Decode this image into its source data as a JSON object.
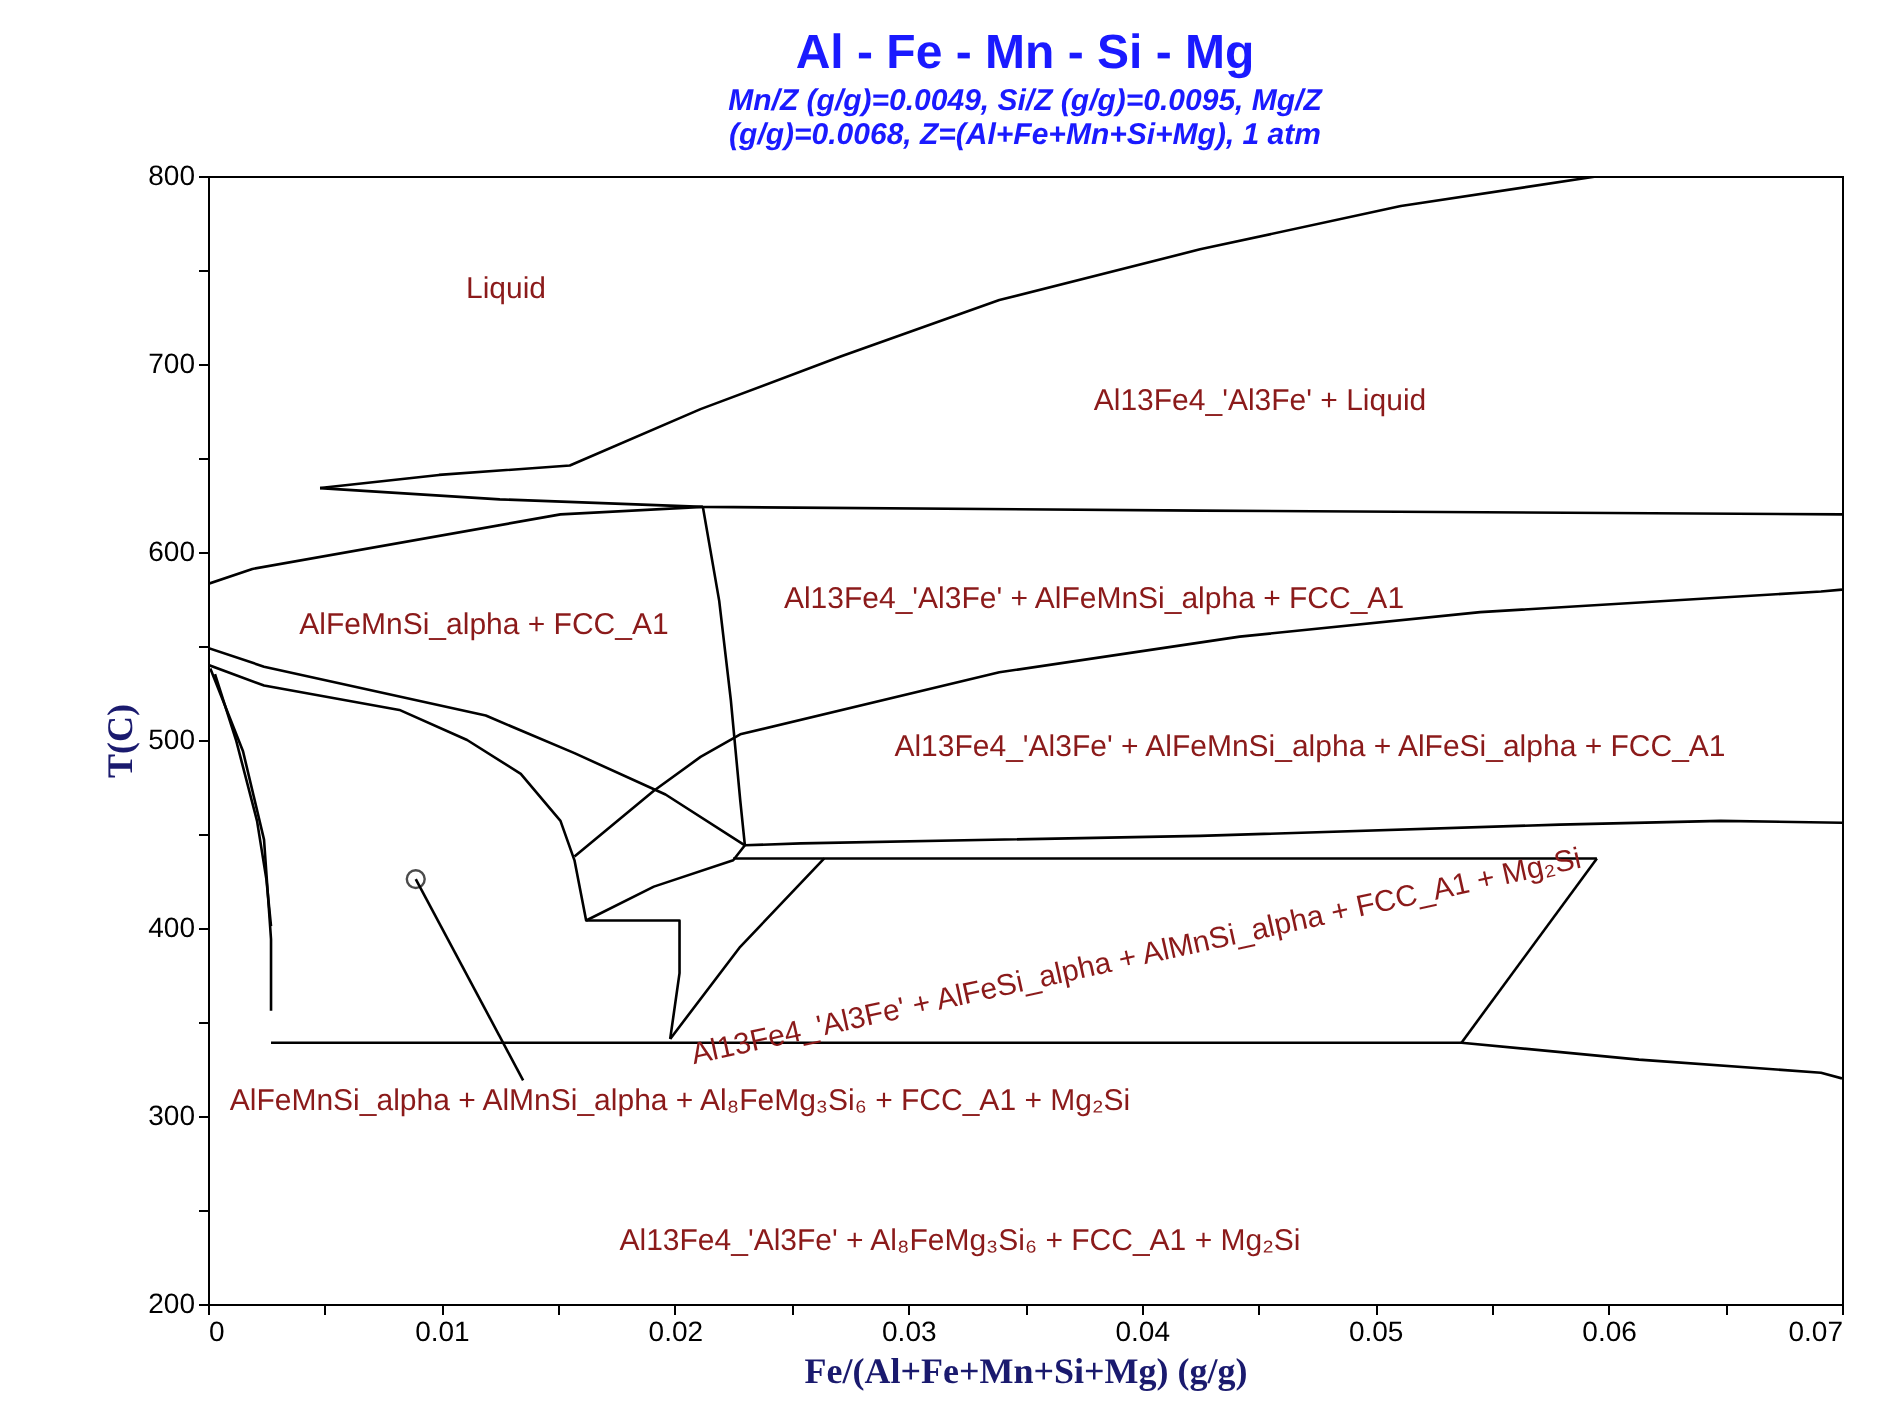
{
  "chart_data": {
    "type": "line",
    "title": "Al - Fe - Mn - Si - Mg",
    "subtitle": "Mn/Z (g/g)=0.0049, Si/Z (g/g)=0.0095, Mg/Z (g/g)=0.0068, Z=(Al+Fe+Mn+Si+Mg), 1 atm",
    "xlabel": "Fe/(Al+Fe+Mn+Si+Mg) (g/g)",
    "ylabel": "T(C)",
    "xlim": [
      0,
      0.07
    ],
    "ylim": [
      200,
      800
    ],
    "xticks": [
      0,
      {
        "value": 0.005,
        "label": null
      },
      0.01,
      {
        "value": 0.015,
        "label": null
      },
      0.02,
      {
        "value": 0.025,
        "label": null
      },
      0.03,
      {
        "value": 0.035,
        "label": null
      },
      0.04,
      {
        "value": 0.045,
        "label": null
      },
      0.05,
      {
        "value": 0.055,
        "label": null
      },
      0.06,
      {
        "value": 0.065,
        "label": null
      },
      0.07
    ],
    "yticks": [
      200,
      {
        "value": 250,
        "label": null
      },
      300,
      {
        "value": 350,
        "label": null
      },
      400,
      {
        "value": 450,
        "label": null
      },
      500,
      {
        "value": 550,
        "label": null
      },
      600,
      {
        "value": 650,
        "label": null
      },
      700,
      {
        "value": 750,
        "label": null
      },
      800
    ],
    "series": [
      {
        "type": "line",
        "color": "#000000",
        "x": [
          0.0048,
          0.0099,
          0.0155,
          0.0211,
          0.0271,
          0.0339,
          0.0425,
          0.0511,
          0.0596
        ],
        "values": [
          634,
          641,
          646,
          676,
          704,
          734,
          761,
          784,
          800
        ]
      },
      {
        "type": "line",
        "color": "#000000",
        "x": [
          0.0048,
          0.0125,
          0.0212,
          0.0425,
          0.07
        ],
        "values": [
          634,
          628,
          624,
          622,
          620
        ]
      },
      {
        "type": "line",
        "color": "#000000",
        "x": [
          0,
          0.0019,
          0.0151,
          0.0212
        ],
        "values": [
          583,
          591,
          620,
          624
        ]
      },
      {
        "type": "line",
        "color": "#000000",
        "x": [
          0.0212,
          0.0219,
          0.0224,
          0.0228,
          0.023
        ],
        "values": [
          624,
          574,
          521,
          468,
          444
        ]
      },
      {
        "type": "line",
        "color": "#000000",
        "x": [
          0.023,
          0.0254,
          0.0425,
          0.0579,
          0.0648,
          0.07
        ],
        "values": [
          444,
          445,
          449,
          455,
          457,
          456
        ]
      },
      {
        "type": "line",
        "color": "#000000",
        "x": [
          0,
          0.0024,
          0.0119,
          0.0157,
          0.0196,
          0.023
        ],
        "values": [
          549,
          539,
          513,
          493,
          471,
          444
        ]
      },
      {
        "type": "line",
        "color": "#000000",
        "x": [
          0,
          0.0024,
          0.0082,
          0.0111,
          0.0134,
          0.0151,
          0.0157,
          0.0162,
          0.0202,
          0.0202,
          0.0198
        ],
        "values": [
          540,
          529,
          516,
          500,
          482,
          457,
          436,
          404,
          404,
          376,
          341
        ]
      },
      {
        "type": "line",
        "color": "#000000",
        "x": [
          0.0157,
          0.0191,
          0.0211,
          0.0228,
          0.0339,
          0.0442,
          0.0545,
          0.0691,
          0.07
        ],
        "values": [
          438,
          473,
          491,
          503,
          536,
          555,
          568,
          579,
          580
        ]
      },
      {
        "type": "line",
        "color": "#000000",
        "x": [
          0.0162,
          0.0191,
          0.0225,
          0.023
        ],
        "values": [
          404,
          422,
          436,
          444
        ]
      },
      {
        "type": "line",
        "color": "#000000",
        "x": [
          0.0225,
          0.0264,
          0.0595
        ],
        "values": [
          437,
          437,
          437
        ]
      },
      {
        "type": "line",
        "color": "#000000",
        "x": [
          0.0264,
          0.0228,
          0.0198
        ],
        "values": [
          437,
          390,
          341
        ]
      },
      {
        "type": "line",
        "color": "#000000",
        "x": [
          0.0027,
          0.0537,
          0.0613,
          0.0691,
          0.07
        ],
        "values": [
          339,
          339,
          330,
          323,
          320
        ]
      },
      {
        "type": "line",
        "color": "#000000",
        "x": [
          0.0595,
          0.0537
        ],
        "values": [
          437,
          339
        ]
      },
      {
        "type": "line",
        "color": "#000000",
        "x": [
          0.0003,
          0.0012,
          0.0021,
          0.0025,
          0.0027
        ],
        "values": [
          535,
          500,
          457,
          426,
          401
        ]
      },
      {
        "type": "line",
        "color": "#000000",
        "x": [
          0.0001,
          0.0015,
          0.0024,
          0.0027,
          0.0027
        ],
        "values": [
          538,
          494,
          447,
          394,
          356
        ]
      },
      {
        "type": "line",
        "color": "#000000",
        "x": [
          0.0089,
          0.0135
        ],
        "values": [
          426,
          319
        ]
      },
      {
        "type": "scatter",
        "marker": "circle",
        "color": "#000000",
        "x": [
          0.0089
        ],
        "values": [
          426
        ]
      }
    ],
    "annotations": [
      "Liquid",
      "Al13Fe4_'Al3Fe' + Liquid",
      "AlFeMnSi_alpha + FCC_A1",
      "Al13Fe4_'Al3Fe' + AlFeMnSi_alpha + FCC_A1",
      "Al13Fe4_'Al3Fe' + AlFeMnSi_alpha + AlFeSi_alpha + FCC_A1",
      "Al13Fe4_'Al3Fe' + AlFeSi_alpha + AlMnSi_alpha + FCC_A1 + Mg₂Si",
      "AlFeMnSi_alpha + AlMnSi_alpha + Al₈FeMg₃Si₆ + FCC_A1 + Mg₂Si",
      "Al13Fe4_'Al3Fe' + Al₈FeMg₃Si₆ + FCC_A1 + Mg₂Si"
    ]
  }
}
